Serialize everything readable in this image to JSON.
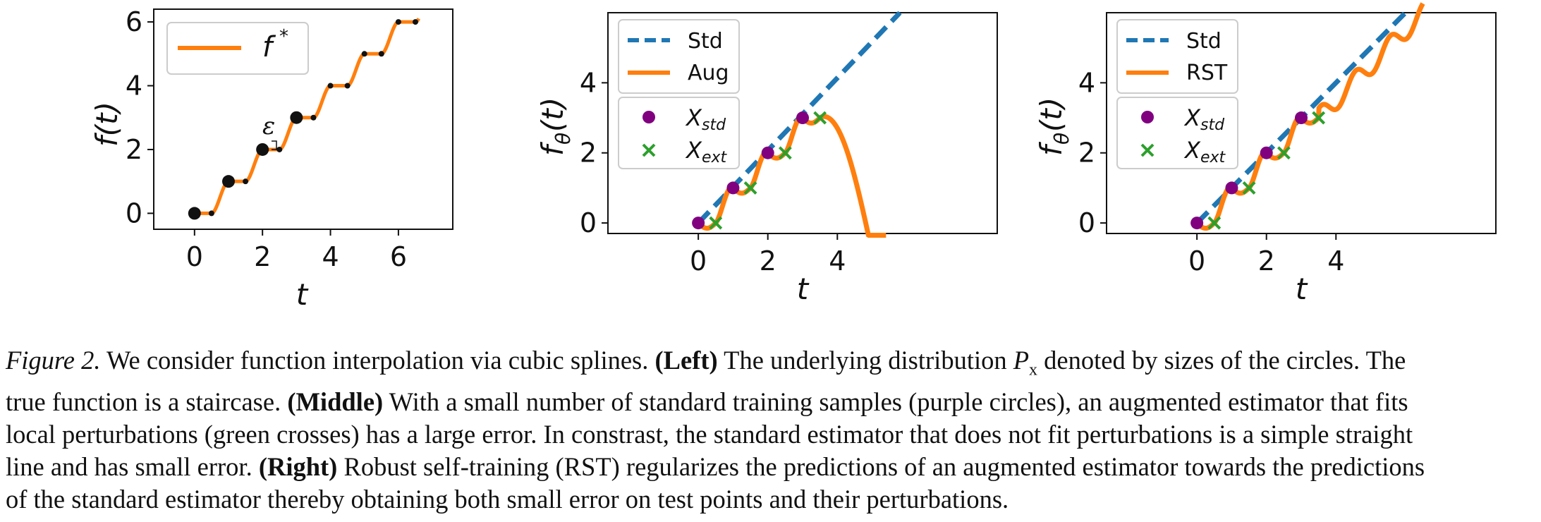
{
  "panels": [
    {
      "id": "left",
      "xlabel": "t",
      "ylabel": "f(t)",
      "xticks": [
        "0",
        "2",
        "4",
        "6"
      ],
      "yticks": [
        "0",
        "2",
        "4",
        "6"
      ],
      "legend": [
        {
          "label": "f",
          "sup": "*",
          "color": "#ff7f0e"
        }
      ],
      "annotation": "ε"
    },
    {
      "id": "middle",
      "xlabel": "t",
      "ylabel": "f",
      "ylabel_sub": "θ",
      "ylabel_tail": "(t)",
      "xticks": [
        "0",
        "2",
        "4"
      ],
      "yticks": [
        "0",
        "2",
        "4"
      ],
      "legend_lines": [
        {
          "label": "Std",
          "color": "#1f77b4"
        },
        {
          "label": "Aug",
          "color": "#ff7f0e"
        }
      ],
      "legend_points": [
        {
          "label": "X",
          "sub": "std",
          "color": "#800080"
        },
        {
          "label": "X",
          "sub": "ext",
          "color": "#2ca02c"
        }
      ]
    },
    {
      "id": "right",
      "xlabel": "t",
      "ylabel": "f",
      "ylabel_sub": "θ",
      "ylabel_tail": "(t)",
      "xticks": [
        "0",
        "2",
        "4"
      ],
      "yticks": [
        "0",
        "2",
        "4"
      ],
      "legend_lines": [
        {
          "label": "Std",
          "color": "#1f77b4"
        },
        {
          "label": "RST",
          "color": "#ff7f0e"
        }
      ],
      "legend_points": [
        {
          "label": "X",
          "sub": "std",
          "color": "#800080"
        },
        {
          "label": "X",
          "sub": "ext",
          "color": "#2ca02c"
        }
      ]
    }
  ],
  "chart_data": [
    {
      "type": "line",
      "panel": "left",
      "xlim": [
        -1.2,
        7.6
      ],
      "ylim": [
        -0.5,
        6.4
      ],
      "series": [
        {
          "name": "f*",
          "color": "#ff7f0e",
          "kind": "staircase-curve",
          "steps": [
            0,
            1,
            2,
            3,
            4,
            5,
            6
          ],
          "step_len": 0.5
        }
      ],
      "points_large": {
        "x": [
          0,
          1,
          2,
          3
        ],
        "y": [
          0,
          1,
          2,
          3
        ]
      },
      "points_small": {
        "x": [
          0.5,
          1.5,
          2.5,
          3.5,
          4,
          4.5,
          5,
          5.5,
          6,
          6.5
        ],
        "y": [
          0,
          1,
          2,
          3,
          4,
          4,
          5,
          5,
          6,
          6
        ]
      }
    },
    {
      "type": "line",
      "panel": "middle",
      "xlim": [
        -2.6,
        8.6
      ],
      "ylim": [
        -0.3,
        6.0
      ],
      "series": [
        {
          "name": "Std",
          "color": "#1f77b4",
          "style": "dashed",
          "kind": "line",
          "x": [
            0,
            5.8
          ],
          "y": [
            0,
            6.0
          ]
        },
        {
          "name": "Aug",
          "color": "#ff7f0e",
          "kind": "aug-curve"
        }
      ],
      "X_std": {
        "x": [
          0,
          1,
          2,
          3
        ],
        "y": [
          0,
          1,
          2,
          3
        ]
      },
      "X_ext": {
        "x": [
          0.5,
          1.5,
          2.5,
          3.5
        ],
        "y": [
          0,
          1,
          2,
          3
        ]
      }
    },
    {
      "type": "line",
      "panel": "right",
      "xlim": [
        -2.6,
        8.6
      ],
      "ylim": [
        -0.3,
        6.0
      ],
      "series": [
        {
          "name": "Std",
          "color": "#1f77b4",
          "style": "dashed",
          "kind": "line",
          "x": [
            0,
            6.0
          ],
          "y": [
            0,
            6.0
          ]
        },
        {
          "name": "RST",
          "color": "#ff7f0e",
          "kind": "rst-curve"
        }
      ],
      "X_std": {
        "x": [
          0,
          1,
          2,
          3
        ],
        "y": [
          0,
          1,
          2,
          3
        ]
      },
      "X_ext": {
        "x": [
          0.5,
          1.5,
          2.5,
          3.5
        ],
        "y": [
          0,
          1,
          2,
          3
        ]
      }
    }
  ],
  "caption": {
    "line1_label": "Figure 2.",
    "line1_text": " We consider function interpolation via cubic splines. ",
    "line1_bold": "(Left)",
    "line1_text2": " The underlying distribution ",
    "line1_math": "P",
    "line1_math_sub": "x",
    "line1_text3": " denoted by sizes of the circles. The",
    "line2_text": "true function is a staircase. ",
    "line2_bold": "(Middle)",
    "line2_text2": " With a small number of standard training samples (purple circles), an augmented estimator that fits",
    "line3_text": "local perturbations (green crosses) has a large error. In constrast, the standard estimator that does not fit perturbations is a simple straight",
    "line4_text": "line and has small error. ",
    "line4_bold": "(Right)",
    "line4_text2": " Robust self-training (RST) regularizes the predictions of an augmented estimator towards the predictions",
    "line5_text": "of the standard estimator thereby obtaining both small error on test points and their perturbations."
  }
}
